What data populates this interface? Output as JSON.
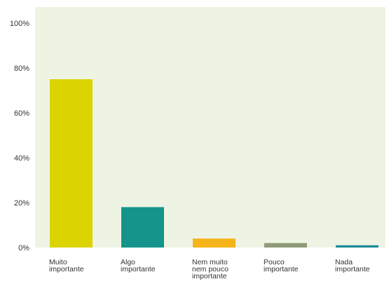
{
  "chart_data": {
    "type": "bar",
    "categories": [
      [
        "Muito",
        "importante"
      ],
      [
        "Algo",
        "importante"
      ],
      [
        "Nem muito",
        "nem pouco",
        "importante"
      ],
      [
        "Pouco",
        "importante"
      ],
      [
        "Nada",
        "importante"
      ]
    ],
    "values": [
      75,
      18,
      4,
      2,
      1
    ],
    "colors": [
      "#dcd400",
      "#14948a",
      "#f4b41a",
      "#8e9a78",
      "#1a8a96"
    ],
    "yticks": [
      "0%",
      "20%",
      "40%",
      "60%",
      "80%",
      "100%"
    ],
    "ylim": [
      0,
      100
    ],
    "grid": false,
    "plot_background": "#eef4e4"
  }
}
